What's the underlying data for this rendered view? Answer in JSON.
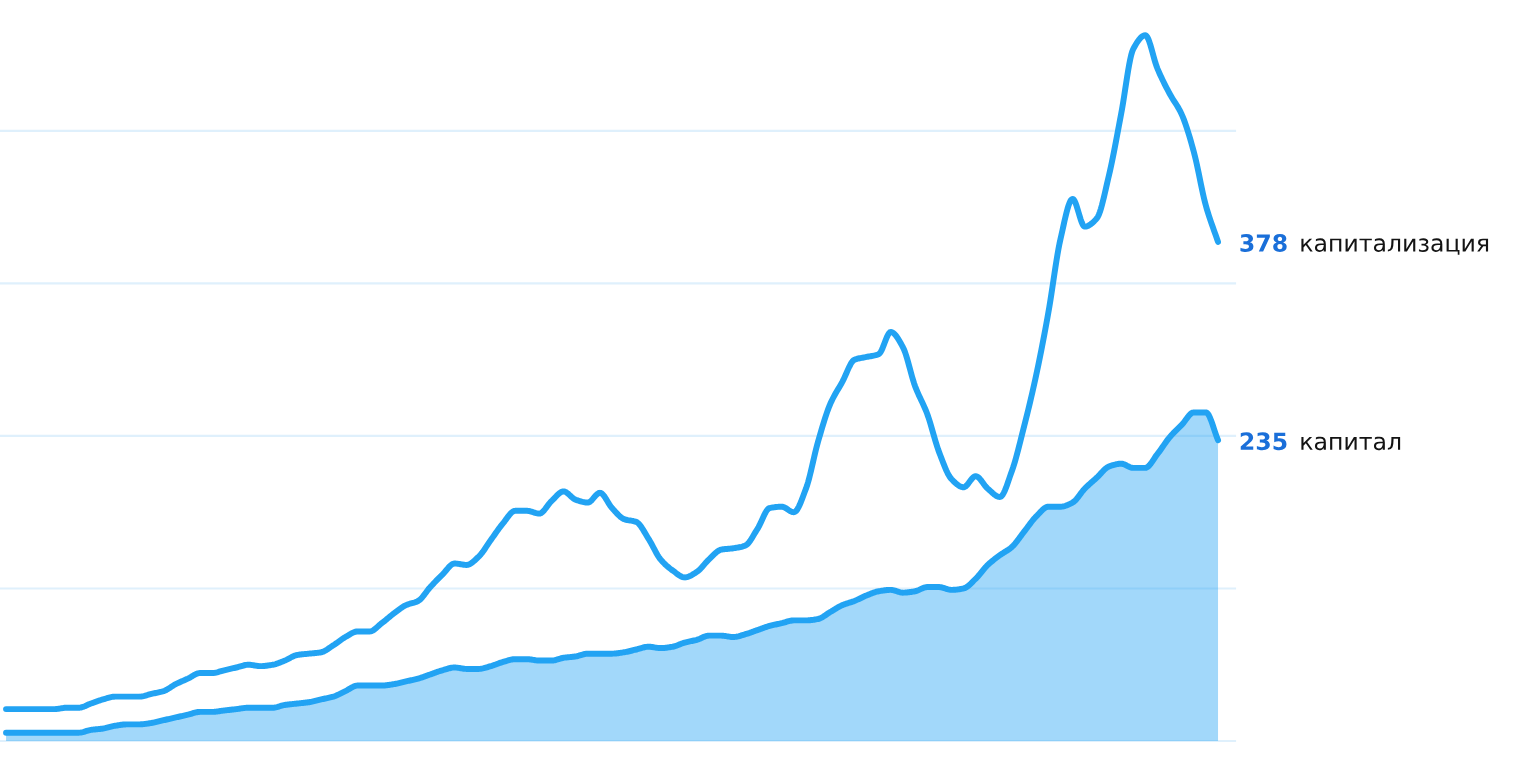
{
  "chart_data": {
    "type": "line",
    "categories": [
      null,
      null,
      null,
      null,
      null,
      null,
      null,
      null,
      null,
      null,
      null,
      null,
      null,
      null,
      null,
      null,
      null,
      null,
      null,
      null,
      null,
      null,
      null,
      null,
      null,
      null,
      null,
      null,
      null,
      null,
      null,
      null,
      null,
      null,
      null,
      null,
      null,
      null,
      null,
      null,
      null,
      null,
      null,
      null,
      null,
      null,
      null,
      null,
      null,
      null,
      null,
      null,
      null,
      null,
      null,
      null,
      null,
      null,
      null,
      null,
      null,
      null,
      null,
      null,
      null,
      null,
      null,
      null,
      null,
      null,
      null,
      null,
      null,
      null,
      null,
      null,
      null,
      null,
      null,
      null,
      null,
      null,
      null,
      null,
      null,
      null,
      null,
      null,
      null,
      null,
      null,
      null,
      null,
      null,
      null,
      null,
      null,
      null,
      null,
      null,
      null
    ],
    "yticks": [
      {
        "value": 18,
        "label": null
      },
      {
        "value": 128,
        "label": null
      },
      {
        "value": 238,
        "label": null
      },
      {
        "value": 348,
        "label": null
      },
      {
        "value": 458,
        "label": null
      }
    ],
    "grid": "y",
    "legend": false,
    "series": [
      {
        "name": "капитализация",
        "color": "#22a3f3",
        "values": [
          41,
          41,
          41,
          41,
          41,
          42,
          42,
          45,
          48,
          50,
          50,
          50,
          52,
          54,
          59,
          63,
          67,
          67,
          69,
          71,
          73,
          72,
          73,
          76,
          80,
          81,
          82,
          87,
          93,
          97,
          97,
          103,
          110,
          116,
          119,
          129,
          138,
          146,
          145,
          151,
          163,
          175,
          184,
          184,
          182,
          191,
          198,
          192,
          190,
          197,
          186,
          178,
          176,
          164,
          149,
          141,
          136,
          140,
          149,
          156,
          157,
          159,
          171,
          186,
          187,
          183,
          200,
          234,
          261,
          277,
          293,
          295,
          297,
          313,
          302,
          274,
          254,
          226,
          207,
          201,
          209,
          200,
          194,
          213,
          245,
          282,
          327,
          380,
          409,
          389,
          395,
          426,
          470,
          517,
          527,
          503,
          485,
          470,
          443,
          404,
          378
        ],
        "value_labels": [
          null,
          null,
          null,
          null,
          null,
          null,
          null,
          null,
          null,
          null,
          null,
          null,
          null,
          null,
          null,
          null,
          null,
          null,
          null,
          null,
          null,
          null,
          null,
          null,
          null,
          null,
          null,
          null,
          null,
          null,
          null,
          null,
          null,
          null,
          null,
          null,
          null,
          null,
          null,
          null,
          null,
          null,
          null,
          null,
          null,
          null,
          null,
          null,
          null,
          null,
          null,
          null,
          null,
          null,
          null,
          null,
          null,
          null,
          null,
          null,
          null,
          null,
          null,
          null,
          null,
          null,
          null,
          null,
          null,
          null,
          null,
          null,
          null,
          null,
          null,
          null,
          null,
          null,
          null,
          null,
          null,
          null,
          null,
          null,
          null,
          null,
          null,
          null,
          null,
          null,
          null,
          null,
          null,
          null,
          null,
          null,
          null,
          null,
          null,
          null,
          "378"
        ]
      },
      {
        "name": "капитал",
        "type": "area",
        "color": "#22a3f3",
        "values": [
          24,
          24,
          24,
          24,
          24,
          24,
          24,
          26,
          27,
          29,
          30,
          30,
          31,
          33,
          35,
          37,
          39,
          39,
          40,
          41,
          42,
          42,
          42,
          44,
          45,
          46,
          48,
          50,
          54,
          58,
          58,
          58,
          59,
          61,
          63,
          66,
          69,
          71,
          70,
          70,
          72,
          75,
          77,
          77,
          76,
          76,
          78,
          79,
          81,
          81,
          81,
          82,
          84,
          86,
          85,
          86,
          89,
          91,
          94,
          94,
          93,
          95,
          98,
          101,
          103,
          105,
          105,
          106,
          111,
          116,
          119,
          123,
          126,
          127,
          125,
          126,
          129,
          129,
          127,
          128,
          135,
          145,
          152,
          158,
          169,
          180,
          187,
          187,
          190,
          200,
          208,
          216,
          218,
          215,
          215,
          225,
          237,
          246,
          255,
          255,
          235
        ],
        "value_labels": [
          null,
          null,
          null,
          null,
          null,
          null,
          null,
          null,
          null,
          null,
          null,
          null,
          null,
          null,
          null,
          null,
          null,
          null,
          null,
          null,
          null,
          null,
          null,
          null,
          null,
          null,
          null,
          null,
          null,
          null,
          null,
          null,
          null,
          null,
          null,
          null,
          null,
          null,
          null,
          null,
          null,
          null,
          null,
          null,
          null,
          null,
          null,
          null,
          null,
          null,
          null,
          null,
          null,
          null,
          null,
          null,
          null,
          null,
          null,
          null,
          null,
          null,
          null,
          null,
          null,
          null,
          null,
          null,
          null,
          null,
          null,
          null,
          null,
          null,
          null,
          null,
          null,
          null,
          null,
          null,
          null,
          null,
          null,
          null,
          null,
          null,
          null,
          null,
          null,
          null,
          null,
          null,
          null,
          null,
          null,
          null,
          null,
          null,
          null,
          null,
          "235"
        ]
      }
    ]
  }
}
